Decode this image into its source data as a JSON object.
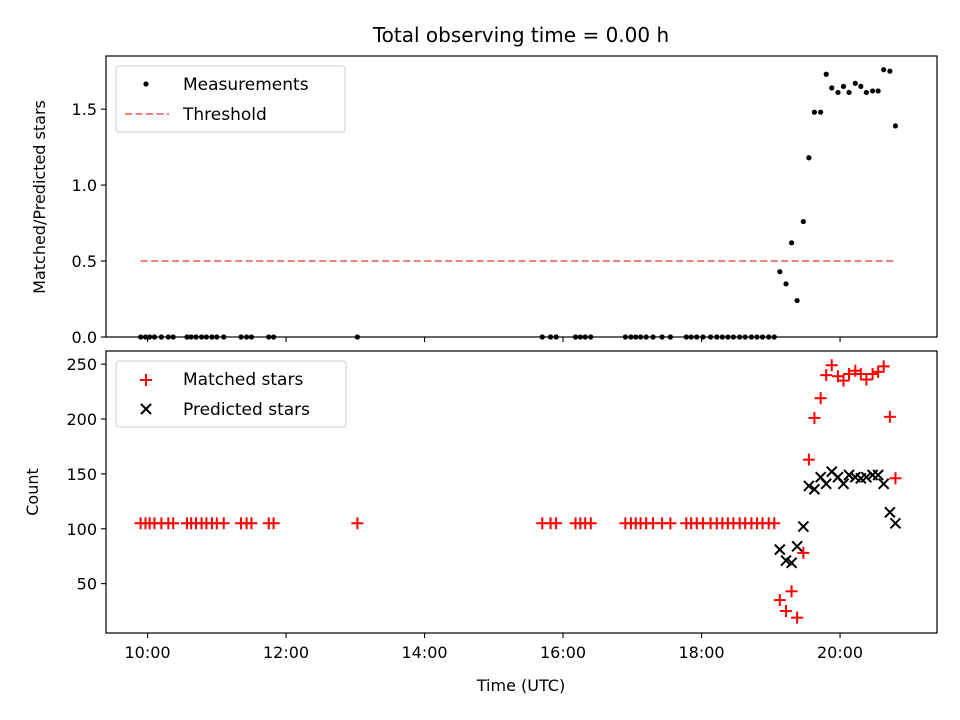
{
  "title": "Total observing time = 0.00 h",
  "xlabel": "Time (UTC)",
  "colors": {
    "measurements": "#000000",
    "threshold": "#f08080",
    "matched": "#ff0000",
    "predicted": "#000000"
  },
  "chart_data": [
    {
      "type": "scatter",
      "ylabel": "Matched/Predicted stars",
      "xlim": [
        9.4,
        21.4
      ],
      "ylim": [
        0,
        1.85
      ],
      "x_ticks": [
        10,
        12,
        14,
        16,
        18,
        20
      ],
      "x_tick_labels_shown": false,
      "y_ticks": [
        0.0,
        0.5,
        1.0,
        1.5
      ],
      "y_tick_labels": [
        "0.0",
        "0.5",
        "1.0",
        "1.5"
      ],
      "legend_position": "top-left",
      "series": [
        {
          "name": "Measurements",
          "marker": "dot",
          "x": [
            9.9,
            9.97,
            10.03,
            10.1,
            10.2,
            10.3,
            10.37,
            10.57,
            10.63,
            10.7,
            10.78,
            10.85,
            10.93,
            11.0,
            11.1,
            11.35,
            11.43,
            11.5,
            11.75,
            11.82,
            13.03,
            15.7,
            15.82,
            15.9,
            16.18,
            16.25,
            16.32,
            16.4,
            16.9,
            16.98,
            17.05,
            17.12,
            17.2,
            17.3,
            17.43,
            17.55,
            17.78,
            17.85,
            17.93,
            18.02,
            18.13,
            18.22,
            18.3,
            18.38,
            18.46,
            18.55,
            18.63,
            18.72,
            18.8,
            18.88,
            18.97,
            19.05,
            19.13,
            19.22,
            19.3,
            19.38,
            19.47,
            19.55,
            19.63,
            19.72,
            19.8,
            19.88,
            19.97,
            20.05,
            20.13,
            20.22,
            20.3,
            20.38,
            20.47,
            20.55,
            20.63,
            20.72,
            20.8
          ],
          "y": [
            0,
            0,
            0,
            0,
            0,
            0,
            0,
            0,
            0,
            0,
            0,
            0,
            0,
            0,
            0,
            0,
            0,
            0,
            0,
            0,
            0,
            0,
            0,
            0,
            0,
            0,
            0,
            0,
            0,
            0,
            0,
            0,
            0,
            0,
            0,
            0,
            0,
            0,
            0,
            0,
            0,
            0,
            0,
            0,
            0,
            0,
            0,
            0,
            0,
            0,
            0,
            0,
            0.43,
            0.35,
            0.62,
            0.24,
            0.76,
            1.18,
            1.48,
            1.48,
            1.73,
            1.64,
            1.61,
            1.65,
            1.61,
            1.67,
            1.65,
            1.61,
            1.62,
            1.62,
            1.76,
            1.75,
            1.39
          ]
        },
        {
          "name": "Threshold",
          "style": "dashed",
          "x": [
            9.9,
            20.8
          ],
          "y": [
            0.5,
            0.5
          ]
        }
      ]
    },
    {
      "type": "scatter",
      "ylabel": "Count",
      "xlim": [
        9.4,
        21.4
      ],
      "ylim": [
        5,
        262
      ],
      "x_ticks": [
        10,
        12,
        14,
        16,
        18,
        20
      ],
      "x_tick_labels": [
        "10:00",
        "12:00",
        "14:00",
        "16:00",
        "18:00",
        "20:00"
      ],
      "y_ticks": [
        50,
        100,
        150,
        200,
        250
      ],
      "y_tick_labels": [
        "50",
        "100",
        "150",
        "200",
        "250"
      ],
      "legend_position": "top-left",
      "series": [
        {
          "name": "Matched stars",
          "marker": "plus",
          "x": [
            9.9,
            9.97,
            10.03,
            10.1,
            10.2,
            10.3,
            10.37,
            10.57,
            10.63,
            10.7,
            10.78,
            10.85,
            10.93,
            11.0,
            11.1,
            11.35,
            11.43,
            11.5,
            11.75,
            11.82,
            13.03,
            15.7,
            15.82,
            15.9,
            16.18,
            16.25,
            16.32,
            16.4,
            16.9,
            16.98,
            17.05,
            17.12,
            17.2,
            17.3,
            17.43,
            17.55,
            17.78,
            17.85,
            17.93,
            18.02,
            18.13,
            18.22,
            18.3,
            18.38,
            18.46,
            18.55,
            18.63,
            18.72,
            18.8,
            18.88,
            18.97,
            19.05,
            19.13,
            19.22,
            19.3,
            19.38,
            19.47,
            19.55,
            19.63,
            19.72,
            19.8,
            19.88,
            19.97,
            20.05,
            20.13,
            20.22,
            20.3,
            20.38,
            20.47,
            20.55,
            20.63,
            20.72,
            20.8
          ],
          "y": [
            105,
            105,
            105,
            105,
            105,
            105,
            105,
            105,
            105,
            105,
            105,
            105,
            105,
            105,
            105,
            105,
            105,
            105,
            105,
            105,
            105,
            105,
            105,
            105,
            105,
            105,
            105,
            105,
            105,
            105,
            105,
            105,
            105,
            105,
            105,
            105,
            105,
            105,
            105,
            105,
            105,
            105,
            105,
            105,
            105,
            105,
            105,
            105,
            105,
            105,
            105,
            105,
            35,
            25,
            43,
            19,
            78,
            163,
            201,
            219,
            240,
            249,
            239,
            235,
            241,
            244,
            241,
            236,
            241,
            243,
            248,
            202,
            146
          ]
        },
        {
          "name": "Predicted stars",
          "marker": "cross",
          "x": [
            19.13,
            19.22,
            19.3,
            19.38,
            19.47,
            19.55,
            19.63,
            19.72,
            19.8,
            19.88,
            19.97,
            20.05,
            20.13,
            20.22,
            20.3,
            20.38,
            20.47,
            20.55,
            20.63,
            20.72,
            20.8
          ],
          "y": [
            81,
            71,
            69,
            84,
            102,
            139,
            136,
            147,
            141,
            152,
            147,
            141,
            149,
            147,
            146,
            147,
            149,
            149,
            141,
            115,
            105
          ]
        }
      ]
    }
  ]
}
